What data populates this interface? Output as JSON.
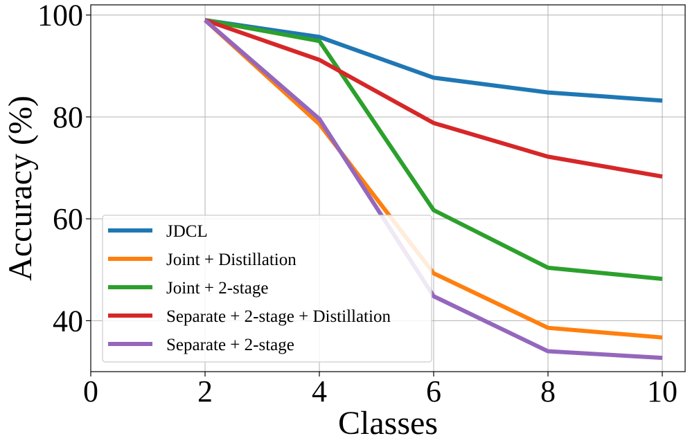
{
  "chart_data": {
    "type": "line",
    "title": "",
    "xlabel": "Classes",
    "ylabel": "Accuracy (%)",
    "xlim": [
      0,
      10.4
    ],
    "ylim": [
      30,
      102
    ],
    "xticks": [
      0,
      2,
      4,
      6,
      8,
      10
    ],
    "yticks": [
      40,
      60,
      80,
      100
    ],
    "grid": true,
    "legend_position": "lower-left",
    "x": [
      2,
      4,
      6,
      8,
      10
    ],
    "series": [
      {
        "name": "JDCL",
        "color": "#1f77b4",
        "values": [
          99.0,
          95.7,
          87.7,
          84.8,
          83.2
        ]
      },
      {
        "name": "Joint + Distillation",
        "color": "#ff7f0e",
        "values": [
          99.0,
          78.6,
          49.3,
          38.6,
          36.7
        ]
      },
      {
        "name": "Joint + 2-stage",
        "color": "#2ca02c",
        "values": [
          99.0,
          94.9,
          61.7,
          50.4,
          48.2
        ]
      },
      {
        "name": "Separate + 2-stage + Distillation",
        "color": "#d62728",
        "values": [
          99.0,
          91.2,
          78.8,
          72.2,
          68.3
        ]
      },
      {
        "name": "Separate + 2-stage",
        "color": "#9467bd",
        "values": [
          99.0,
          79.6,
          44.8,
          34.0,
          32.7
        ]
      }
    ]
  }
}
